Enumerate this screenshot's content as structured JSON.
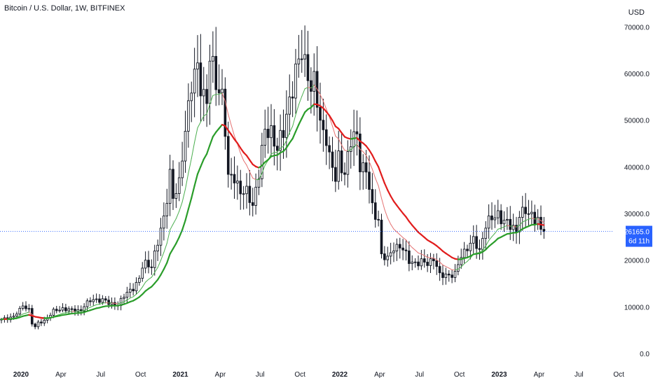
{
  "header": {
    "symbol": "Bitcoin / U.S. Dollar",
    "interval": "1W",
    "exchange": "BITFINEX",
    "currency": "USD"
  },
  "last_price": {
    "value": "26165.0",
    "countdown": "6d 11h"
  },
  "colors": {
    "candle": "#131722",
    "bull_fill": "#ffffff",
    "ema_up": "#2a9d2a",
    "ema_down": "#e11d1d",
    "ema_fast": "#4caf50",
    "ema_fast_down": "#e57373",
    "price_line": "#2962ff",
    "tag_bg": "#2962ff"
  },
  "chart_data": {
    "type": "candlestick",
    "title": "Bitcoin / U.S. Dollar, 1W, BITFINEX",
    "x_labels": [
      "2020",
      "Apr",
      "Jul",
      "Oct",
      "2021",
      "Apr",
      "Jul",
      "Oct",
      "2022",
      "Apr",
      "Jul",
      "Oct",
      "2023",
      "Apr",
      "Jul",
      "Oct"
    ],
    "x_labels_bold": [
      "2020",
      "2021",
      "2022",
      "2023"
    ],
    "y_labels": [
      "0.0",
      "10000.0",
      "20000.0",
      "30000.0",
      "40000.0",
      "50000.0",
      "60000.0",
      "70000.0"
    ],
    "ylim": [
      0,
      72000
    ],
    "xlim_weeks": [
      0,
      200
    ],
    "price_anchors": [
      [
        0,
        7200
      ],
      [
        4,
        8000
      ],
      [
        6,
        9200
      ],
      [
        7,
        10300
      ],
      [
        9,
        9500
      ],
      [
        10,
        6500
      ],
      [
        11,
        5600
      ],
      [
        12,
        6500
      ],
      [
        14,
        7100
      ],
      [
        17,
        9000
      ],
      [
        20,
        9700
      ],
      [
        23,
        9200
      ],
      [
        26,
        9300
      ],
      [
        27,
        10300
      ],
      [
        30,
        11600
      ],
      [
        33,
        11500
      ],
      [
        35,
        10700
      ],
      [
        38,
        10600
      ],
      [
        39,
        11300
      ],
      [
        41,
        13000
      ],
      [
        43,
        14200
      ],
      [
        45,
        15800
      ],
      [
        46,
        18500
      ],
      [
        47,
        19300
      ],
      [
        49,
        19000
      ],
      [
        51,
        23500
      ],
      [
        53,
        29000
      ],
      [
        55,
        39000
      ],
      [
        56,
        33000
      ],
      [
        58,
        36000
      ],
      [
        60,
        49000
      ],
      [
        62,
        57000
      ],
      [
        64,
        61000
      ],
      [
        65,
        58000
      ],
      [
        67,
        54000
      ],
      [
        68,
        63000
      ],
      [
        70,
        58000
      ],
      [
        72,
        56000
      ],
      [
        73,
        48000
      ],
      [
        74,
        37000
      ],
      [
        76,
        38000
      ],
      [
        78,
        35000
      ],
      [
        80,
        34000
      ],
      [
        82,
        32000
      ],
      [
        84,
        39000
      ],
      [
        86,
        47000
      ],
      [
        88,
        48000
      ],
      [
        90,
        44000
      ],
      [
        92,
        47000
      ],
      [
        94,
        55000
      ],
      [
        96,
        60000
      ],
      [
        98,
        64000
      ],
      [
        100,
        61000
      ],
      [
        101,
        57000
      ],
      [
        102,
        58000
      ],
      [
        104,
        49000
      ],
      [
        106,
        47000
      ],
      [
        107,
        42000
      ],
      [
        109,
        37000
      ],
      [
        110,
        42000
      ],
      [
        112,
        39000
      ],
      [
        114,
        45000
      ],
      [
        116,
        47000
      ],
      [
        117,
        41000
      ],
      [
        119,
        39000
      ],
      [
        121,
        31000
      ],
      [
        123,
        29000
      ],
      [
        124,
        21000
      ],
      [
        126,
        20000
      ],
      [
        128,
        23000
      ],
      [
        130,
        23000
      ],
      [
        133,
        20000
      ],
      [
        136,
        19300
      ],
      [
        139,
        19500
      ],
      [
        141,
        20500
      ],
      [
        143,
        16500
      ],
      [
        145,
        17000
      ],
      [
        148,
        16800
      ],
      [
        150,
        21000
      ],
      [
        152,
        23000
      ],
      [
        154,
        24000
      ],
      [
        156,
        22000
      ],
      [
        158,
        28000
      ],
      [
        160,
        28500
      ],
      [
        162,
        30000
      ],
      [
        164,
        28500
      ],
      [
        166,
        27000
      ],
      [
        168,
        26500
      ],
      [
        169,
        30500
      ],
      [
        171,
        30000
      ],
      [
        173,
        29500
      ],
      [
        175,
        29200
      ],
      [
        176,
        26000
      ],
      [
        177,
        26165
      ]
    ],
    "series": [
      {
        "name": "",
        "kind": "candles"
      },
      {
        "name": "",
        "kind": "ema-slow"
      },
      {
        "name": "",
        "kind": "ema-fast"
      }
    ],
    "current_price": 26165.0,
    "grid": false,
    "legend": "top-left"
  }
}
